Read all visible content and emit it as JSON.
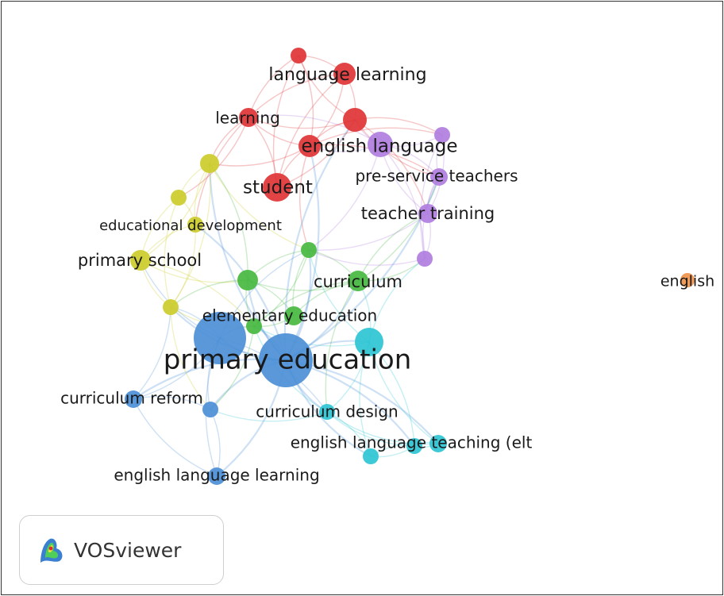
{
  "network": {
    "colors": {
      "red": "#e03436",
      "purple": "#b07ee0",
      "yellow": "#cccc2b",
      "green": "#46b840",
      "blue": "#4c8fd6",
      "cyan": "#2ec4d4",
      "orange": "#f0934a"
    },
    "nodes": [
      {
        "id": "language-learning",
        "label": "language learning",
        "cluster": "red"
      },
      {
        "id": "learning",
        "label": "learning",
        "cluster": "red"
      },
      {
        "id": "english-language",
        "label": "english language",
        "cluster": "red"
      },
      {
        "id": "student",
        "label": "student",
        "cluster": "red"
      },
      {
        "id": "pre-service-teachers",
        "label": "pre-service teachers",
        "cluster": "purple"
      },
      {
        "id": "teacher-training",
        "label": "teacher training",
        "cluster": "purple"
      },
      {
        "id": "educational-development",
        "label": "educational development",
        "cluster": "yellow"
      },
      {
        "id": "primary-school",
        "label": "primary school",
        "cluster": "yellow"
      },
      {
        "id": "curriculum",
        "label": "curriculum",
        "cluster": "green"
      },
      {
        "id": "elementary-education",
        "label": "elementary education",
        "cluster": "green"
      },
      {
        "id": "primary-education",
        "label": "primary education",
        "cluster": "blue"
      },
      {
        "id": "curriculum-reform",
        "label": "curriculum reform",
        "cluster": "blue"
      },
      {
        "id": "english-language-learning",
        "label": "english language learning",
        "cluster": "blue"
      },
      {
        "id": "curriculum-design",
        "label": "curriculum design",
        "cluster": "cyan"
      },
      {
        "id": "english-language-teaching",
        "label": "english language teaching (elt",
        "cluster": "cyan"
      },
      {
        "id": "english",
        "label": "english",
        "cluster": "orange"
      }
    ]
  },
  "badge": {
    "brand": "VOSviewer"
  }
}
